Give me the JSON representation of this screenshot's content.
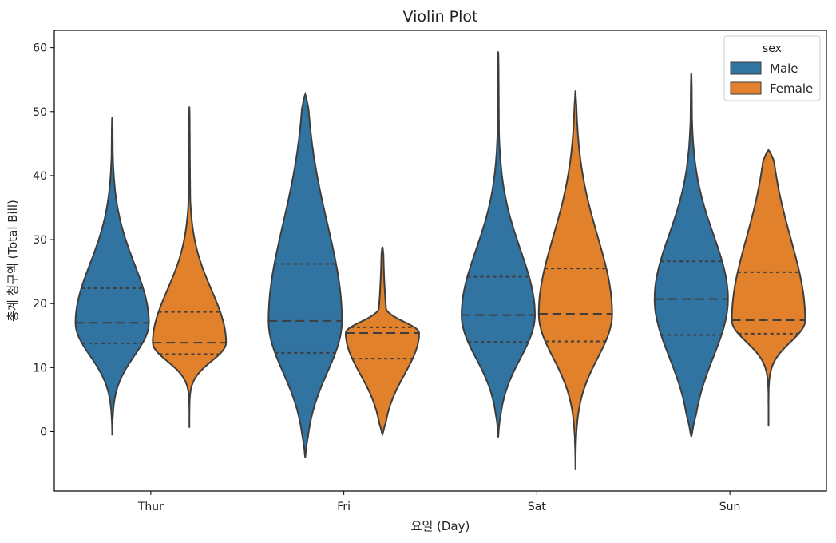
{
  "chart_data": {
    "type": "violin",
    "title": "Violin Plot",
    "xlabel": "요일 (Day)",
    "ylabel": "총계 청구액 (Total Bill)",
    "categories": [
      "Thur",
      "Fri",
      "Sat",
      "Sun"
    ],
    "ylim": [
      -9.3,
      62.7
    ],
    "yticks": [
      0,
      10,
      20,
      30,
      40,
      50,
      60
    ],
    "legend": {
      "title": "sex",
      "placement": "top-right"
    },
    "inner": "quartile",
    "series": [
      {
        "name": "Male",
        "color": "#3274a1",
        "violins": [
          {
            "category": "Thur",
            "min": -0.6,
            "max": 49.2,
            "q1": 13.8,
            "median": 17.0,
            "q3": 22.4
          },
          {
            "category": "Fri",
            "min": -4.1,
            "max": 52.7,
            "q1": 12.3,
            "median": 17.3,
            "q3": 26.2
          },
          {
            "category": "Sat",
            "min": -0.9,
            "max": 59.4,
            "q1": 14.0,
            "median": 18.2,
            "q3": 24.2
          },
          {
            "category": "Sun",
            "min": -0.8,
            "max": 56.1,
            "q1": 15.1,
            "median": 20.7,
            "q3": 26.6
          }
        ]
      },
      {
        "name": "Female",
        "color": "#e1812c",
        "violins": [
          {
            "category": "Thur",
            "min": 0.6,
            "max": 50.8,
            "q1": 12.1,
            "median": 13.9,
            "q3": 18.7
          },
          {
            "category": "Fri",
            "min": -0.4,
            "max": 28.9,
            "q1": 11.4,
            "median": 15.4,
            "q3": 16.3
          },
          {
            "category": "Sat",
            "min": -5.9,
            "max": 53.3,
            "q1": 14.1,
            "median": 18.4,
            "q3": 25.5
          },
          {
            "category": "Sun",
            "min": 0.8,
            "max": 44.0,
            "q1": 15.3,
            "median": 17.4,
            "q3": 24.9
          }
        ]
      }
    ]
  }
}
